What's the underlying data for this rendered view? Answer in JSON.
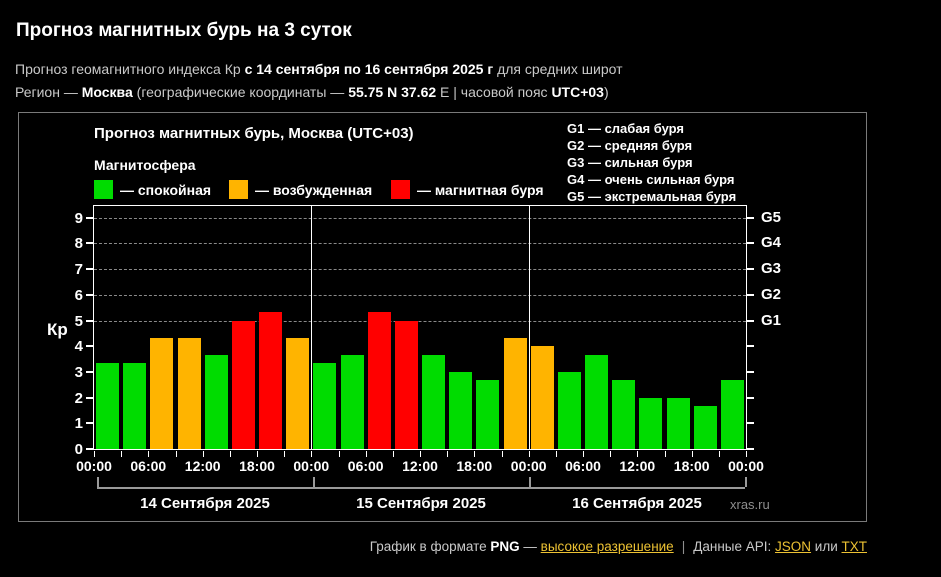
{
  "theme": {
    "background": "#000000",
    "text_primary": "#FFFFFF",
    "text_secondary": "#C9C9C9",
    "link": "#EDC233",
    "watermark": "#8F8F8F",
    "panel_border": "#7A7A7A",
    "axis": "#FFFFFF",
    "gridline": "#8A8A8A",
    "bracket": "#9A9A9A"
  },
  "header": {
    "title": "Прогноз магнитных бурь на 3 суток",
    "line1": {
      "t1": "Прогноз геомагнитного индекса Кр ",
      "b1": "с 14 сентября по 16 сентября 2025 г",
      "t2": " для средних широт"
    },
    "line2": {
      "t1": "Регион — ",
      "b1": "Москва",
      "t2": " (географические координаты — ",
      "b2": "55.75 N 37.62",
      "t3": " E | часовой пояс ",
      "b3": "UTC+03",
      "t4": ")"
    }
  },
  "chart": {
    "title": "Прогноз магнитных бурь, Москва (UTC+03)",
    "magnetosphere_label": "Магнитосфера",
    "legend": [
      {
        "name": "quiet",
        "label": "— спокойная",
        "color": "#00DC00"
      },
      {
        "name": "active",
        "label": "— возбужденная",
        "color": "#FFB400"
      },
      {
        "name": "storm",
        "label": "— магнитная буря",
        "color": "#FF0000"
      }
    ],
    "storm_scale": [
      "G1 — слабая буря",
      "G2 — средняя буря",
      "G3 — сильная буря",
      "G4 — очень сильная буря",
      "G5 — экстремальная буря"
    ],
    "watermark": "xras.ru"
  },
  "chart_data": {
    "type": "bar",
    "title": "Прогноз магнитных бурь, Москва (UTC+03)",
    "ylabel": "Кр",
    "ylim": [
      0,
      9.45
    ],
    "yticks": [
      0,
      1,
      2,
      3,
      4,
      5,
      6,
      7,
      8,
      9
    ],
    "gridlines_at_kp": [
      5,
      6,
      7,
      8,
      9
    ],
    "grid_style": "dashed",
    "right_axis": [
      {
        "label": "G1",
        "kp": 5
      },
      {
        "label": "G2",
        "kp": 6
      },
      {
        "label": "G3",
        "kp": 7
      },
      {
        "label": "G4",
        "kp": 8
      },
      {
        "label": "G5",
        "kp": 9
      }
    ],
    "x_tick_labels": [
      "00:00",
      "06:00",
      "12:00",
      "18:00",
      "00:00",
      "06:00",
      "12:00",
      "18:00",
      "00:00",
      "06:00",
      "12:00",
      "18:00",
      "00:00"
    ],
    "interval_hours": 3,
    "days": [
      {
        "label": "14 Сентября 2025",
        "values": [
          3.33,
          3.33,
          4.33,
          4.33,
          3.67,
          5.0,
          5.33,
          4.33
        ]
      },
      {
        "label": "15 Сентября 2025",
        "values": [
          3.33,
          3.67,
          5.33,
          5.0,
          3.67,
          3.0,
          2.67,
          4.33
        ]
      },
      {
        "label": "16 Сентября 2025",
        "values": [
          4.0,
          3.0,
          3.67,
          2.67,
          2.0,
          2.0,
          1.67,
          2.67
        ]
      }
    ],
    "color_thresholds": {
      "active_from": 4,
      "storm_from": 5
    },
    "colors": {
      "quiet": "#00DC00",
      "active": "#FFB400",
      "storm": "#FF0000"
    }
  },
  "footer": {
    "t1": "График в формате ",
    "b1": "PNG",
    "t2": " — ",
    "link_hires": "высокое разрешение",
    "sep": "|",
    "t3": "Данные API: ",
    "link_json": "JSON",
    "t4": " или ",
    "link_txt": "TXT"
  }
}
